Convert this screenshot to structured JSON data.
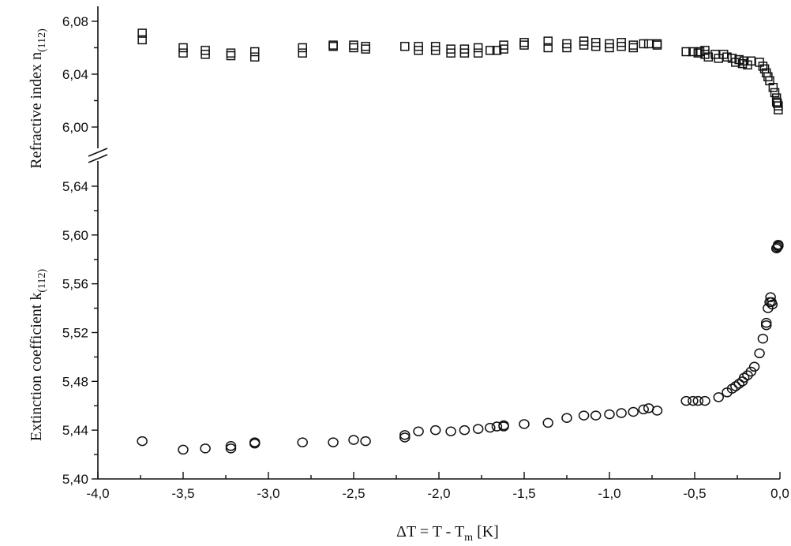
{
  "chart_data": {
    "type": "scatter",
    "x_axis": {
      "label_main": "ΔT = T - T",
      "label_sub": "m",
      "label_unit": " [K]",
      "range": [
        -4.0,
        0.0
      ],
      "ticks": [
        "-4,0",
        "-3,5",
        "-3,0",
        "-2,5",
        "-2,0",
        "-1,5",
        "-1,0",
        "-0,5",
        "0,0"
      ],
      "tick_values": [
        -4.0,
        -3.5,
        -3.0,
        -2.5,
        -2.0,
        -1.5,
        -1.0,
        -0.5,
        0.0
      ]
    },
    "y_axis_upper": {
      "label_main": "Refractive index n",
      "label_sub": "(112)",
      "range": [
        5.99,
        6.08
      ],
      "ticks": [
        "6,00",
        "6,04",
        "6,08"
      ],
      "tick_values": [
        6.0,
        6.04,
        6.08
      ]
    },
    "y_axis_lower": {
      "label_main": "Extinction coefficient k",
      "label_sub": "(112)",
      "range": [
        5.4,
        5.66
      ],
      "ticks": [
        "5,40",
        "5,44",
        "5,48",
        "5,52",
        "5,56",
        "5,60",
        "5,64"
      ],
      "tick_values": [
        5.4,
        5.44,
        5.48,
        5.52,
        5.56,
        5.6,
        5.64
      ]
    },
    "axis_break": true,
    "grid": false,
    "series": [
      {
        "marker": "square",
        "axis": "upper",
        "x": [
          -3.74,
          -3.74,
          -3.5,
          -3.5,
          -3.37,
          -3.37,
          -3.22,
          -3.22,
          -3.08,
          -3.08,
          -2.8,
          -2.8,
          -2.62,
          -2.62,
          -2.5,
          -2.5,
          -2.43,
          -2.43,
          -2.2,
          -2.12,
          -2.12,
          -2.02,
          -2.02,
          -1.93,
          -1.93,
          -1.85,
          -1.85,
          -1.77,
          -1.77,
          -1.7,
          -1.66,
          -1.62,
          -1.62,
          -1.5,
          -1.5,
          -1.36,
          -1.36,
          -1.25,
          -1.25,
          -1.15,
          -1.15,
          -1.08,
          -1.08,
          -1.0,
          -1.0,
          -0.93,
          -0.93,
          -0.86,
          -0.86,
          -0.8,
          -0.77,
          -0.72,
          -0.72,
          -0.55,
          -0.51,
          -0.48,
          -0.47,
          -0.44,
          -0.44,
          -0.42,
          -0.38,
          -0.36,
          -0.33,
          -0.31,
          -0.28,
          -0.26,
          -0.24,
          -0.22,
          -0.21,
          -0.19,
          -0.17,
          -0.12,
          -0.1,
          -0.09,
          -0.08,
          -0.07,
          -0.06,
          -0.04,
          -0.03,
          -0.02,
          -0.02,
          -0.01,
          -0.01,
          -0.015
        ],
        "y": [
          6.071,
          6.066,
          6.06,
          6.056,
          6.058,
          6.055,
          6.056,
          6.054,
          6.057,
          6.053,
          6.06,
          6.056,
          6.062,
          6.061,
          6.062,
          6.06,
          6.061,
          6.059,
          6.061,
          6.061,
          6.058,
          6.061,
          6.058,
          6.059,
          6.056,
          6.059,
          6.056,
          6.06,
          6.056,
          6.058,
          6.058,
          6.062,
          6.059,
          6.064,
          6.062,
          6.065,
          6.06,
          6.063,
          6.06,
          6.065,
          6.062,
          6.064,
          6.061,
          6.063,
          6.06,
          6.064,
          6.061,
          6.062,
          6.06,
          6.063,
          6.063,
          6.063,
          6.062,
          6.057,
          6.057,
          6.056,
          6.057,
          6.055,
          6.058,
          6.053,
          6.055,
          6.052,
          6.055,
          6.053,
          6.052,
          6.049,
          6.051,
          6.048,
          6.05,
          6.047,
          6.05,
          6.049,
          6.046,
          6.044,
          6.041,
          6.038,
          6.035,
          6.03,
          6.026,
          6.022,
          6.019,
          6.016,
          6.013,
          6.018
        ]
      },
      {
        "marker": "circle",
        "axis": "lower",
        "x": [
          -3.74,
          -3.5,
          -3.37,
          -3.22,
          -3.22,
          -3.08,
          -3.08,
          -2.8,
          -2.62,
          -2.5,
          -2.43,
          -2.2,
          -2.2,
          -2.12,
          -2.02,
          -1.93,
          -1.85,
          -1.77,
          -1.7,
          -1.66,
          -1.62,
          -1.62,
          -1.5,
          -1.36,
          -1.25,
          -1.15,
          -1.08,
          -1.0,
          -0.93,
          -0.86,
          -0.8,
          -0.77,
          -0.72,
          -0.55,
          -0.51,
          -0.48,
          -0.44,
          -0.36,
          -0.31,
          -0.28,
          -0.26,
          -0.24,
          -0.22,
          -0.21,
          -0.19,
          -0.17,
          -0.15,
          -0.12,
          -0.1,
          -0.08,
          -0.08,
          -0.07,
          -0.06,
          -0.055,
          -0.05,
          -0.045,
          -0.02,
          -0.015,
          -0.01,
          -0.01
        ],
        "y": [
          5.431,
          5.424,
          5.425,
          5.427,
          5.425,
          5.43,
          5.429,
          5.43,
          5.43,
          5.432,
          5.431,
          5.436,
          5.434,
          5.439,
          5.44,
          5.439,
          5.44,
          5.441,
          5.442,
          5.443,
          5.444,
          5.443,
          5.445,
          5.446,
          5.45,
          5.452,
          5.452,
          5.453,
          5.454,
          5.455,
          5.457,
          5.458,
          5.456,
          5.464,
          5.464,
          5.464,
          5.464,
          5.467,
          5.471,
          5.474,
          5.476,
          5.478,
          5.48,
          5.483,
          5.485,
          5.488,
          5.492,
          5.503,
          5.515,
          5.526,
          5.528,
          5.54,
          5.545,
          5.549,
          5.545,
          5.543,
          5.589,
          5.59,
          5.591,
          5.592
        ]
      }
    ]
  }
}
